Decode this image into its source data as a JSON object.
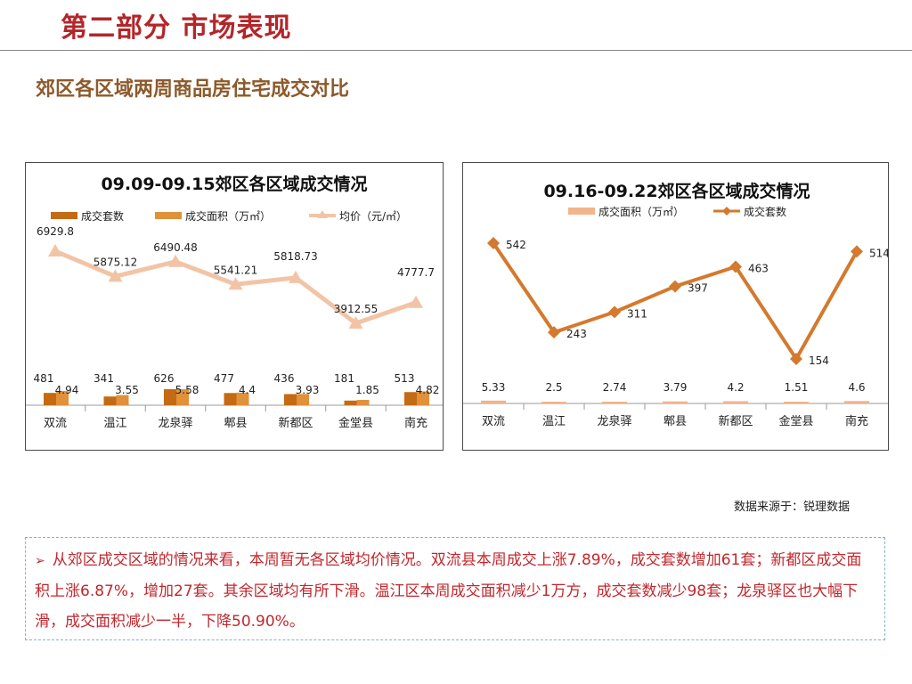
{
  "page": {
    "title": "第二部分 市场表现",
    "subtitle": "郊区各区域两周商品房住宅成交对比",
    "source": "数据来源于：锐理数据",
    "summary": "从郊区成交区域的情况来看，本周暂无各区域均价情况。双流县本周成交上涨7.89%，成交套数增加61套；新都区成交面积上涨6.87%，增加27套。其余区域均有所下滑。温江区本周成交面积减少1万方，成交套数减少98套；龙泉驿区也大幅下滑，成交面积减少一半，下降50.90%。",
    "summary_bullet": "➢"
  },
  "colors": {
    "title_red": "#b2262a",
    "subtitle_brown": "#8c5a2b",
    "bar_units": "#c46a12",
    "bar_area": "#e0913a",
    "line_price": "#f2c4a6",
    "line_units2": "#d4792d",
    "bar_area2": "#f2b48a"
  },
  "chart_data": [
    {
      "type": "bar",
      "title": "09.09-09.15郊区各区域成交情况",
      "categories": [
        "双流",
        "温江",
        "龙泉驿",
        "郫县",
        "新都区",
        "金堂县",
        "南充"
      ],
      "series": [
        {
          "name": "成交套数",
          "kind": "bar",
          "values": [
            481,
            341,
            626,
            477,
            436,
            181,
            513
          ]
        },
        {
          "name": "成交面积（万㎡）",
          "kind": "bar",
          "values": [
            4.94,
            3.55,
            5.58,
            4.4,
            3.93,
            1.85,
            4.82
          ]
        },
        {
          "name": "均价（元/㎡）",
          "kind": "line",
          "values": [
            6929.8,
            5875.12,
            6490.48,
            5541.21,
            5818.73,
            3912.55,
            4777.7
          ]
        }
      ],
      "legend_position": "top"
    },
    {
      "type": "line",
      "title": "09.16-09.22郊区各区域成交情况",
      "categories": [
        "双流",
        "温江",
        "龙泉驿",
        "郫县",
        "新都区",
        "金堂县",
        "南充"
      ],
      "series": [
        {
          "name": "成交面积（万㎡）",
          "kind": "bar",
          "values": [
            5.33,
            2.5,
            2.74,
            3.79,
            4.2,
            1.51,
            4.6
          ]
        },
        {
          "name": "成交套数",
          "kind": "line",
          "values": [
            542,
            243,
            311,
            397,
            463,
            154,
            514
          ]
        }
      ],
      "legend_position": "top"
    }
  ]
}
